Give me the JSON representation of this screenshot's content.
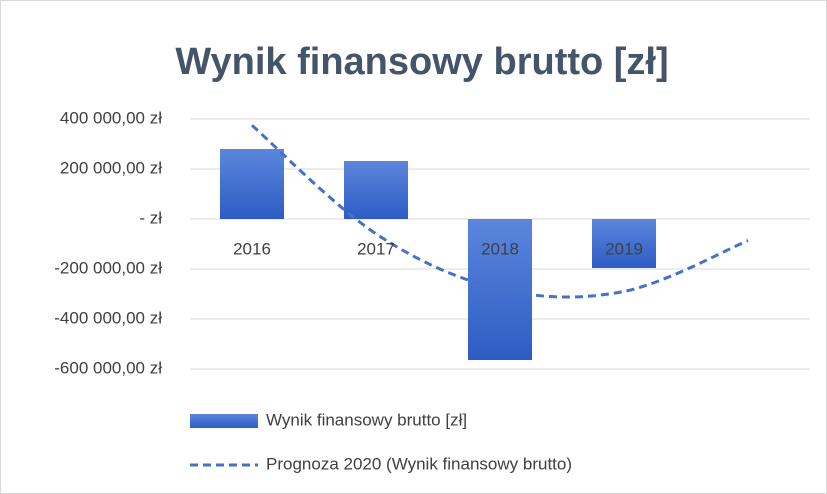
{
  "chart_data": {
    "type": "bar",
    "title": "Wynik finansowy brutto [zł]",
    "categories": [
      "2016",
      "2017",
      "2018",
      "2019",
      null
    ],
    "series": [
      {
        "name": "Wynik finansowy brutto [zł]",
        "color": "#3b6ad0",
        "values": [
          280000,
          232000,
          -564000,
          -196000,
          null
        ]
      },
      {
        "name": "Prognoza 2020 (Wynik finansowy brutto)",
        "color": "#4472c4",
        "type": "line",
        "dashed": true,
        "values": [
          374750,
          -59250,
          -280750,
          -289750,
          -86250
        ]
      }
    ],
    "ylim": [
      -600000,
      400000
    ],
    "yticks": [
      {
        "value": -600000,
        "label": "-600 000,00 zł"
      },
      {
        "value": -400000,
        "label": "-400 000,00 zł"
      },
      {
        "value": -200000,
        "label": "-200 000,00 zł"
      },
      {
        "value": 0,
        "label": "-   zł"
      },
      {
        "value": 200000,
        "label": "200 000,00 zł"
      },
      {
        "value": 400000,
        "label": "400 000,00 zł"
      }
    ],
    "grid": true,
    "legend": "bottom"
  }
}
